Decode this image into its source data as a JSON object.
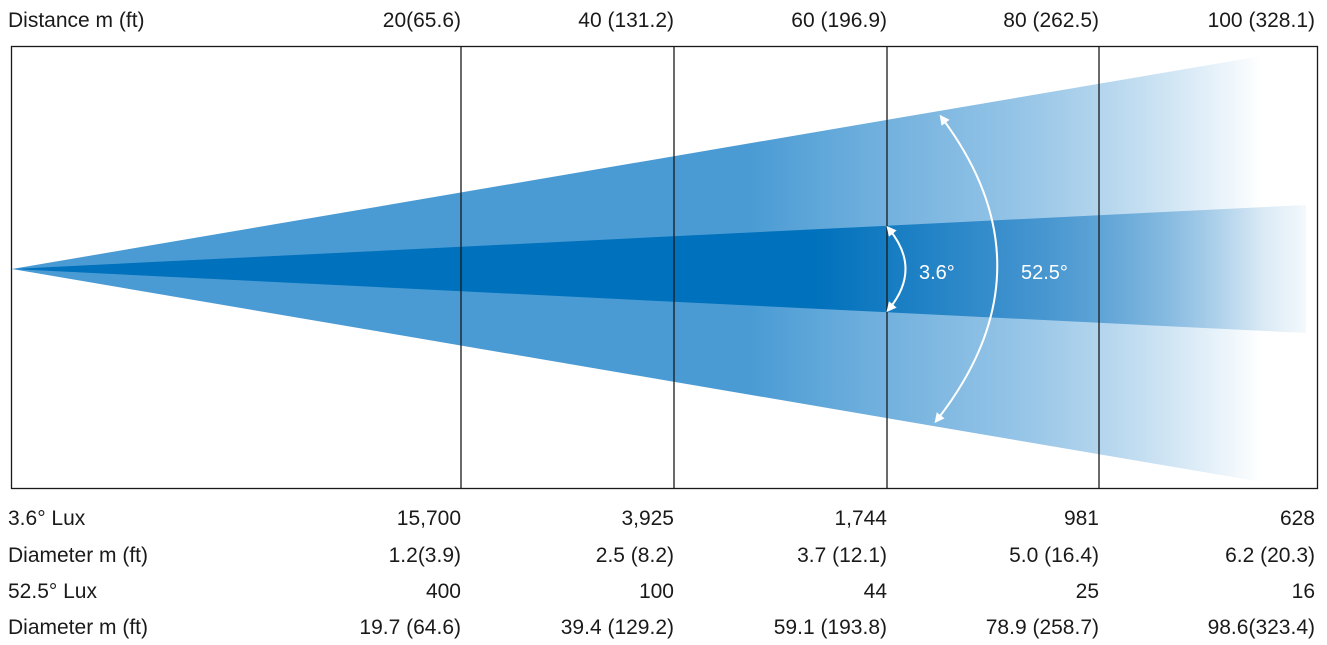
{
  "header": {
    "label": "Distance m (ft)",
    "distances": [
      "20(65.6)",
      "40 (131.2)",
      "60 (196.9)",
      "80 (262.5)",
      "100 (328.1)"
    ]
  },
  "beam": {
    "narrow_angle_label": "3.6°",
    "wide_angle_label": "52.5°",
    "narrow_color": "#0071BC",
    "wide_color": "#4A9BD4"
  },
  "table": {
    "rows": [
      {
        "label": "3.6° Lux",
        "values": [
          "15,700",
          "3,925",
          "1,744",
          "981",
          "628"
        ]
      },
      {
        "label": "Diameter m (ft)",
        "values": [
          "1.2(3.9)",
          "2.5 (8.2)",
          "3.7 (12.1)",
          "5.0 (16.4)",
          "6.2 (20.3)"
        ]
      },
      {
        "label": "52.5° Lux",
        "values": [
          "400",
          "100",
          "44",
          "25",
          "16"
        ]
      },
      {
        "label": "Diameter m (ft)",
        "values": [
          "19.7 (64.6)",
          "39.4 (129.2)",
          "59.1 (193.8)",
          "78.9 (258.7)",
          "98.6(323.4)"
        ]
      }
    ]
  }
}
